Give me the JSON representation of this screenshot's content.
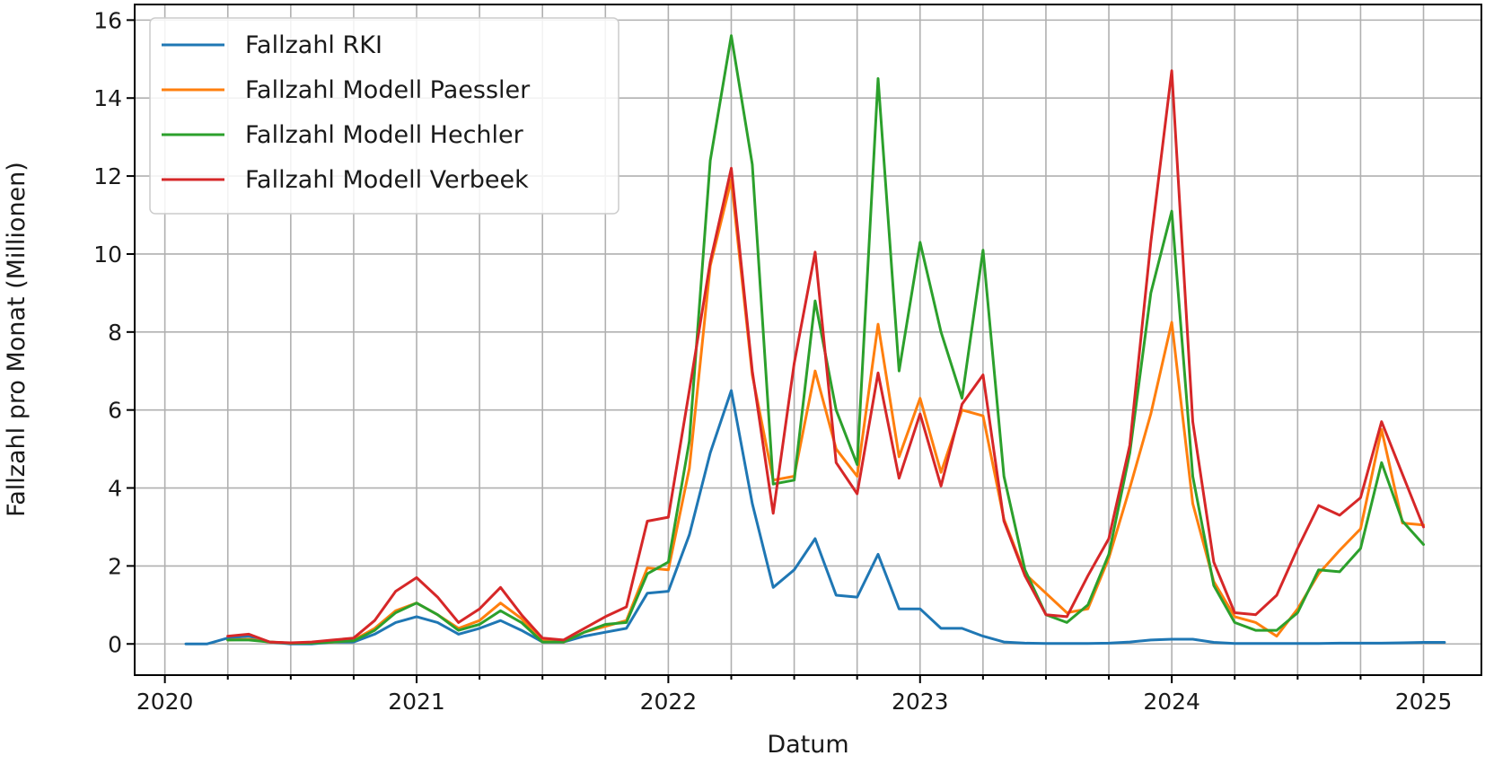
{
  "chart_data": {
    "type": "line",
    "xlabel": "Datum",
    "ylabel": "Fallzahl pro Monat (Millionen)",
    "xlim": [
      2019.88,
      2025.23
    ],
    "ylim": [
      -0.8,
      16.4
    ],
    "x_ticks": [
      2020,
      2021,
      2022,
      2023,
      2024,
      2025
    ],
    "x_tick_labels": [
      "2020",
      "2021",
      "2022",
      "2023",
      "2024",
      "2025"
    ],
    "x_minor_ticks": [
      2020.25,
      2020.5,
      2020.75,
      2021.25,
      2021.5,
      2021.75,
      2022.25,
      2022.5,
      2022.75,
      2023.25,
      2023.5,
      2023.75,
      2024.25,
      2024.5,
      2024.75
    ],
    "y_ticks": [
      0,
      2,
      4,
      6,
      8,
      10,
      12,
      14,
      16
    ],
    "y_tick_labels": [
      "0",
      "2",
      "4",
      "6",
      "8",
      "10",
      "12",
      "14",
      "16"
    ],
    "grid": true,
    "legend_position": "top-left",
    "series": [
      {
        "name": "Fallzahl RKI",
        "color": "#1f77b4",
        "start_month": 1,
        "values": [
          0.0,
          0.0,
          0.15,
          0.2,
          0.05,
          0.0,
          0.0,
          0.05,
          0.05,
          0.25,
          0.55,
          0.7,
          0.55,
          0.25,
          0.4,
          0.6,
          0.35,
          0.05,
          0.05,
          0.2,
          0.3,
          0.4,
          1.3,
          1.35,
          2.8,
          4.9,
          6.5,
          3.6,
          1.45,
          1.9,
          2.7,
          1.25,
          1.2,
          2.3,
          0.9,
          0.9,
          0.4,
          0.4,
          0.2,
          0.05,
          0.02,
          0.01,
          0.01,
          0.01,
          0.02,
          0.05,
          0.1,
          0.12,
          0.12,
          0.04,
          0.01,
          0.01,
          0.01,
          0.01,
          0.01,
          0.02,
          0.02,
          0.02,
          0.03,
          0.04,
          0.04
        ]
      },
      {
        "name": "Fallzahl Modell Paessler",
        "color": "#ff7f0e",
        "start_month": 3,
        "values": [
          0.1,
          0.12,
          0.05,
          0.02,
          0.03,
          0.05,
          0.1,
          0.4,
          0.85,
          1.05,
          0.75,
          0.4,
          0.6,
          1.05,
          0.65,
          0.1,
          0.05,
          0.3,
          0.45,
          0.6,
          1.95,
          1.9,
          4.5,
          9.7,
          11.9,
          6.9,
          4.2,
          4.3,
          7.0,
          5.0,
          4.3,
          8.2,
          4.8,
          6.3,
          4.4,
          6.0,
          5.85,
          3.2,
          1.8,
          1.3,
          0.8,
          0.9,
          2.2,
          4.0,
          5.9,
          8.25,
          3.6,
          1.6,
          0.7,
          0.55,
          0.2,
          0.9,
          1.8,
          2.4,
          2.95,
          5.5,
          3.1,
          3.05
        ]
      },
      {
        "name": "Fallzahl Modell Hechler",
        "color": "#2ca02c",
        "start_month": 3,
        "values": [
          0.1,
          0.1,
          0.05,
          0.02,
          0.02,
          0.05,
          0.08,
          0.35,
          0.8,
          1.05,
          0.75,
          0.35,
          0.5,
          0.85,
          0.55,
          0.05,
          0.05,
          0.3,
          0.5,
          0.55,
          1.8,
          2.1,
          5.2,
          12.4,
          15.6,
          12.3,
          4.1,
          4.2,
          8.8,
          6.0,
          4.6,
          14.5,
          7.0,
          10.3,
          8.0,
          6.3,
          10.1,
          4.3,
          1.9,
          0.75,
          0.55,
          1.0,
          2.3,
          4.9,
          9.0,
          11.1,
          4.3,
          1.5,
          0.55,
          0.35,
          0.35,
          0.8,
          1.9,
          1.85,
          2.45,
          4.65,
          3.15,
          2.55
        ]
      },
      {
        "name": "Fallzahl Modell Verbeek",
        "color": "#d62728",
        "start_month": 3,
        "values": [
          0.2,
          0.25,
          0.05,
          0.03,
          0.05,
          0.1,
          0.15,
          0.6,
          1.35,
          1.7,
          1.2,
          0.55,
          0.9,
          1.45,
          0.75,
          0.15,
          0.1,
          0.4,
          0.7,
          0.95,
          3.15,
          3.25,
          6.5,
          9.8,
          12.2,
          7.0,
          3.35,
          7.2,
          10.05,
          4.65,
          3.85,
          6.95,
          4.25,
          5.9,
          4.05,
          6.15,
          6.9,
          3.15,
          1.75,
          0.75,
          0.7,
          1.75,
          2.7,
          5.1,
          10.3,
          14.7,
          5.7,
          2.1,
          0.8,
          0.75,
          1.25,
          2.45,
          3.55,
          3.3,
          3.75,
          5.7,
          4.35,
          3.0
        ]
      }
    ]
  }
}
